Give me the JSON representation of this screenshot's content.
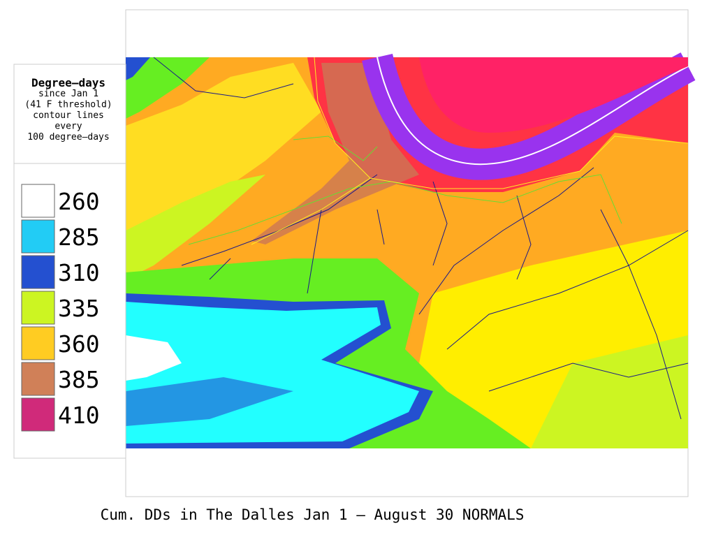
{
  "legend": {
    "title": "Degree—days",
    "subtitle": [
      "since Jan 1",
      "(41 F threshold)",
      "contour lines",
      "every",
      "100 degree—days"
    ],
    "items": [
      {
        "label": 260,
        "color": "#ffffff"
      },
      {
        "label": 285,
        "color": "#22ccf5"
      },
      {
        "label": 310,
        "color": "#2450d0"
      },
      {
        "label": 335,
        "color": "#ccf522"
      },
      {
        "label": 360,
        "color": "#ffcc22"
      },
      {
        "label": 385,
        "color": "#d08058"
      },
      {
        "label": 410,
        "color": "#d02a7a"
      }
    ]
  },
  "caption": "Cum. DDs in The Dalles Jan 1 — August 30 NORMALS"
}
